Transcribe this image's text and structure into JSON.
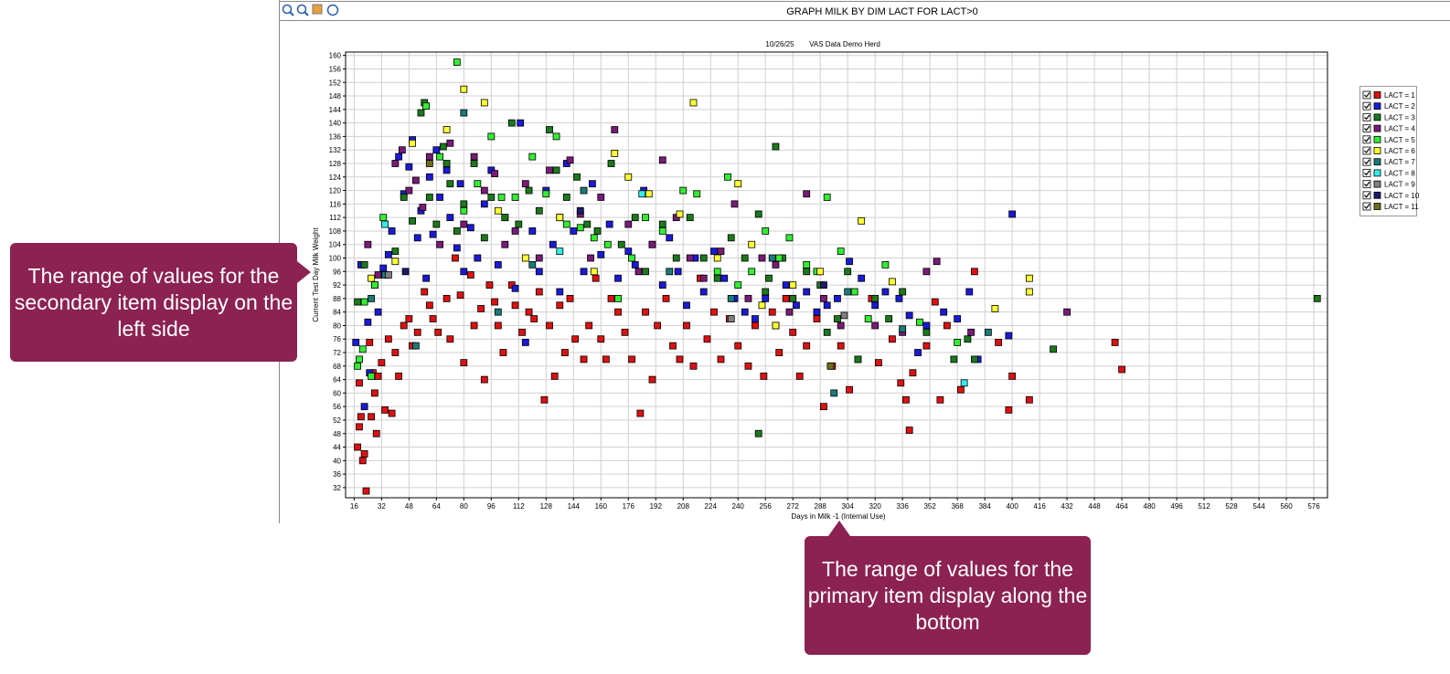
{
  "chart_data": {
    "type": "scatter",
    "window_title": "GRAPH MILK BY DIM LACT FOR LACT>0",
    "date": "10/26/25",
    "herd": "VAS Data Demo Herd",
    "xlabel": "Days in Milk -1 (Internal Use)",
    "ylabel": "Current Test Day Milk Weight",
    "xlim": [
      11,
      584
    ],
    "ylim": [
      29,
      161
    ],
    "xticks": [
      16,
      32,
      48,
      64,
      80,
      96,
      112,
      128,
      144,
      160,
      176,
      192,
      208,
      224,
      240,
      256,
      272,
      288,
      304,
      320,
      336,
      352,
      368,
      384,
      400,
      416,
      432,
      448,
      464,
      480,
      496,
      512,
      528,
      544,
      560,
      576
    ],
    "yticks": [
      32,
      36,
      40,
      44,
      48,
      52,
      56,
      60,
      64,
      68,
      72,
      76,
      80,
      84,
      88,
      92,
      96,
      100,
      104,
      108,
      112,
      116,
      120,
      124,
      128,
      132,
      136,
      140,
      144,
      148,
      152,
      156,
      160
    ],
    "grid": true,
    "legend": "right",
    "series": [
      {
        "name": "LACT = 1",
        "color": "#e01010",
        "x": [
          18,
          19,
          19,
          20,
          21,
          22,
          23,
          25,
          26,
          27,
          28,
          29,
          30,
          32,
          34,
          36,
          38,
          40,
          42,
          45,
          48,
          50,
          53,
          57,
          60,
          62,
          65,
          70,
          72,
          75,
          78,
          80,
          84,
          86,
          90,
          92,
          95,
          98,
          100,
          103,
          108,
          110,
          114,
          118,
          121,
          124,
          127,
          130,
          133,
          136,
          139,
          142,
          145,
          150,
          153,
          157,
          160,
          163,
          166,
          170,
          174,
          178,
          183,
          186,
          190,
          193,
          198,
          202,
          206,
          210,
          214,
          218,
          222,
          226,
          230,
          235,
          240,
          246,
          250,
          255,
          260,
          264,
          268,
          272,
          276,
          280,
          286,
          290,
          295,
          300,
          305,
          310,
          318,
          322,
          330,
          335,
          338,
          340,
          342,
          350,
          355,
          358,
          362,
          370,
          378,
          392,
          398,
          400,
          410,
          460,
          464
        ],
        "values": [
          44,
          63,
          50,
          53,
          40,
          42,
          31,
          75,
          53,
          66,
          60,
          48,
          65,
          69,
          55,
          76,
          54,
          72,
          65,
          80,
          82,
          74,
          78,
          90,
          86,
          82,
          78,
          88,
          76,
          100,
          89,
          69,
          95,
          80,
          85,
          64,
          92,
          87,
          80,
          72,
          92,
          86,
          78,
          84,
          82,
          90,
          58,
          80,
          65,
          86,
          72,
          88,
          76,
          70,
          80,
          94,
          76,
          70,
          88,
          84,
          78,
          70,
          54,
          84,
          64,
          80,
          88,
          74,
          70,
          80,
          68,
          94,
          76,
          84,
          70,
          82,
          74,
          68,
          80,
          65,
          84,
          72,
          88,
          78,
          65,
          74,
          82,
          56,
          68,
          74,
          61,
          70,
          88,
          69,
          76,
          63,
          58,
          49,
          66,
          74,
          87,
          58,
          80,
          61,
          96,
          75,
          55,
          65,
          58,
          75,
          67
        ]
      },
      {
        "name": "LACT = 2",
        "color": "#1a1ad8",
        "x": [
          17,
          20,
          22,
          24,
          25,
          28,
          30,
          33,
          36,
          38,
          42,
          45,
          48,
          50,
          53,
          55,
          58,
          60,
          62,
          64,
          66,
          70,
          72,
          76,
          78,
          80,
          84,
          88,
          92,
          96,
          100,
          104,
          110,
          113,
          116,
          120,
          124,
          128,
          132,
          136,
          140,
          144,
          150,
          155,
          160,
          165,
          170,
          176,
          180,
          185,
          190,
          196,
          200,
          205,
          210,
          215,
          220,
          226,
          232,
          238,
          244,
          250,
          256,
          262,
          268,
          274,
          280,
          286,
          292,
          298,
          305,
          312,
          320,
          326,
          334,
          340,
          345,
          350,
          360,
          368,
          375,
          380,
          398,
          400
        ],
        "values": [
          75,
          98,
          56,
          81,
          66,
          92,
          84,
          97,
          101,
          108,
          130,
          119,
          127,
          135,
          106,
          114,
          94,
          124,
          107,
          132,
          118,
          126,
          112,
          103,
          122,
          96,
          109,
          100,
          116,
          126,
          98,
          112,
          91,
          140,
          75,
          108,
          96,
          120,
          104,
          90,
          128,
          108,
          96,
          122,
          101,
          110,
          94,
          102,
          98,
          120,
          104,
          92,
          106,
          96,
          86,
          100,
          90,
          102,
          94,
          88,
          84,
          82,
          88,
          80,
          92,
          86,
          90,
          84,
          86,
          88,
          99,
          94,
          86,
          90,
          88,
          83,
          72,
          80,
          84,
          82,
          90,
          70,
          77,
          113
        ]
      },
      {
        "name": "LACT = 3",
        "color": "#1a7a1a",
        "x": [
          18,
          22,
          40,
          45,
          50,
          55,
          57,
          60,
          64,
          68,
          70,
          72,
          76,
          80,
          86,
          92,
          96,
          104,
          108,
          112,
          118,
          124,
          130,
          134,
          140,
          146,
          152,
          158,
          166,
          172,
          180,
          186,
          196,
          204,
          212,
          220,
          228,
          236,
          244,
          252,
          256,
          258,
          262,
          266,
          272,
          280,
          288,
          292,
          298,
          304,
          310,
          320,
          328,
          336,
          350,
          366,
          374,
          378,
          424,
          578,
          252
        ],
        "values": [
          87,
          98,
          102,
          118,
          111,
          143,
          146,
          118,
          110,
          133,
          128,
          122,
          108,
          116,
          128,
          106,
          118,
          112,
          140,
          110,
          120,
          114,
          138,
          126,
          118,
          124,
          110,
          108,
          128,
          104,
          112,
          96,
          110,
          100,
          112,
          100,
          94,
          106,
          100,
          113,
          90,
          94,
          133,
          100,
          88,
          96,
          92,
          78,
          82,
          96,
          70,
          88,
          82,
          90,
          78,
          70,
          76,
          70,
          73,
          88,
          48
        ]
      },
      {
        "name": "LACT = 4",
        "color": "#7a1a7a",
        "x": [
          24,
          30,
          40,
          44,
          48,
          52,
          56,
          60,
          66,
          72,
          80,
          86,
          92,
          98,
          104,
          110,
          116,
          124,
          130,
          136,
          142,
          148,
          154,
          160,
          168,
          176,
          182,
          190,
          196,
          204,
          212,
          220,
          230,
          238,
          246,
          254,
          262,
          270,
          280,
          290,
          300,
          320,
          336,
          350,
          356,
          376,
          432
        ],
        "values": [
          104,
          95,
          128,
          132,
          120,
          123,
          115,
          130,
          104,
          134,
          110,
          130,
          120,
          125,
          104,
          108,
          122,
          100,
          126,
          112,
          129,
          113,
          100,
          118,
          138,
          110,
          96,
          104,
          129,
          112,
          100,
          94,
          102,
          116,
          88,
          100,
          98,
          84,
          119,
          88,
          80,
          80,
          78,
          96,
          99,
          78,
          84
        ]
      },
      {
        "name": "LACT = 5",
        "color": "#33ee33",
        "x": [
          18,
          19,
          21,
          22,
          26,
          28,
          33,
          58,
          66,
          76,
          80,
          88,
          96,
          102,
          110,
          120,
          128,
          134,
          140,
          148,
          156,
          164,
          170,
          178,
          186,
          196,
          208,
          216,
          228,
          234,
          240,
          248,
          256,
          264,
          270,
          280,
          286,
          292,
          300,
          308,
          316,
          326,
          346,
          368
        ],
        "values": [
          68,
          70,
          73,
          87,
          65,
          92,
          112,
          145,
          130,
          158,
          114,
          122,
          136,
          118,
          118,
          130,
          119,
          136,
          110,
          109,
          106,
          104,
          88,
          100,
          112,
          108,
          120,
          119,
          96,
          124,
          92,
          96,
          108,
          100,
          106,
          98,
          96,
          118,
          102,
          90,
          82,
          98,
          81,
          75
        ]
      },
      {
        "name": "LACT = 6",
        "color": "#ffff33",
        "x": [
          26,
          40,
          50,
          70,
          80,
          92,
          100,
          116,
          136,
          156,
          168,
          176,
          188,
          206,
          214,
          228,
          240,
          248,
          254,
          262,
          272,
          288,
          312,
          330,
          390,
          410,
          410
        ],
        "values": [
          94,
          99,
          134,
          138,
          150,
          146,
          114,
          100,
          112,
          96,
          131,
          124,
          119,
          113,
          146,
          100,
          122,
          104,
          86,
          80,
          92,
          96,
          111,
          93,
          85,
          94,
          90
        ]
      },
      {
        "name": "LACT = 7",
        "color": "#1a7a7a",
        "x": [
          26,
          34,
          52,
          80,
          100,
          120,
          150,
          200,
          236,
          260,
          296,
          304,
          336,
          386
        ],
        "values": [
          88,
          95,
          74,
          143,
          84,
          98,
          120,
          96,
          88,
          100,
          60,
          90,
          79,
          78
        ]
      },
      {
        "name": "LACT = 8",
        "color": "#33eeee",
        "x": [
          34,
          136,
          184,
          372
        ],
        "values": [
          110,
          102,
          119,
          63
        ]
      },
      {
        "name": "LACT = 9",
        "color": "#808080",
        "x": [
          36,
          236,
          302
        ],
        "values": [
          95,
          82,
          83
        ]
      },
      {
        "name": "LACT = 10",
        "color": "#1a1a6e",
        "x": [
          46,
          148,
          290
        ],
        "values": [
          96,
          114,
          92
        ]
      },
      {
        "name": "LACT = 11",
        "color": "#6e6e1a",
        "x": [
          60,
          294
        ],
        "values": [
          128,
          68
        ]
      }
    ],
    "annotations": [
      {
        "text": "The range of values for the secondary item display on the left side"
      },
      {
        "text": "The range of values for the primary item display along the bottom"
      }
    ]
  }
}
